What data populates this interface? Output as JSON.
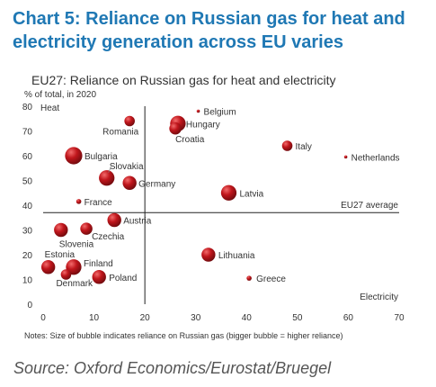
{
  "header": {
    "title_line1": "Chart 5: Reliance on Russian gas for heat and",
    "title_line2": "electricity generation across EU varies"
  },
  "chart_data": {
    "type": "scatter",
    "subtitle": "EU27: Reliance on Russian gas for heat and electricity",
    "unit_label": "% of total, in 2020",
    "xlabel": "Electricity",
    "ylabel": "Heat",
    "xlim": [
      0,
      70
    ],
    "ylim": [
      0,
      80
    ],
    "xticks": [
      0,
      10,
      20,
      30,
      40,
      50,
      60,
      70
    ],
    "yticks": [
      0,
      10,
      20,
      30,
      40,
      50,
      60,
      70,
      80
    ],
    "reference_lines": {
      "label": "EU27 average",
      "x": 20,
      "y": 37
    },
    "note": "Notes: Size of bubble indicates reliance on Russian gas (bigger bubble = higher reliance)",
    "bubble_color": "#c0161c",
    "points": [
      {
        "label": "Belgium",
        "x": 30.5,
        "y": 78,
        "size": 1
      },
      {
        "label": "Romania",
        "x": 17,
        "y": 74,
        "size": 4
      },
      {
        "label": "Hungary",
        "x": 26.5,
        "y": 73,
        "size": 7
      },
      {
        "label": "Croatia",
        "x": 26,
        "y": 71,
        "size": 5
      },
      {
        "label": "Italy",
        "x": 48,
        "y": 64,
        "size": 4
      },
      {
        "label": "Netherlands",
        "x": 59.5,
        "y": 59.5,
        "size": 1
      },
      {
        "label": "Bulgaria",
        "x": 6,
        "y": 60,
        "size": 8
      },
      {
        "label": "Slovakia",
        "x": 12.5,
        "y": 51,
        "size": 7
      },
      {
        "label": "Germany",
        "x": 17,
        "y": 49,
        "size": 6
      },
      {
        "label": "Latvia",
        "x": 36.5,
        "y": 45,
        "size": 7
      },
      {
        "label": "France",
        "x": 7,
        "y": 41.5,
        "size": 2
      },
      {
        "label": "Austria",
        "x": 14,
        "y": 34,
        "size": 6
      },
      {
        "label": "Slovenia",
        "x": 3.5,
        "y": 30,
        "size": 6
      },
      {
        "label": "Czechia",
        "x": 8.5,
        "y": 30.5,
        "size": 5
      },
      {
        "label": "Lithuania",
        "x": 32.5,
        "y": 20,
        "size": 6
      },
      {
        "label": "Estonia",
        "x": 1,
        "y": 15,
        "size": 6
      },
      {
        "label": "Finland",
        "x": 6,
        "y": 15,
        "size": 7
      },
      {
        "label": "Denmark",
        "x": 4.5,
        "y": 12,
        "size": 4
      },
      {
        "label": "Poland",
        "x": 11,
        "y": 11,
        "size": 6
      },
      {
        "label": "Greece",
        "x": 40.5,
        "y": 10.5,
        "size": 2
      }
    ]
  },
  "footer": {
    "source": "Source: Oxford Economics/Eurostat/Bruegel"
  }
}
